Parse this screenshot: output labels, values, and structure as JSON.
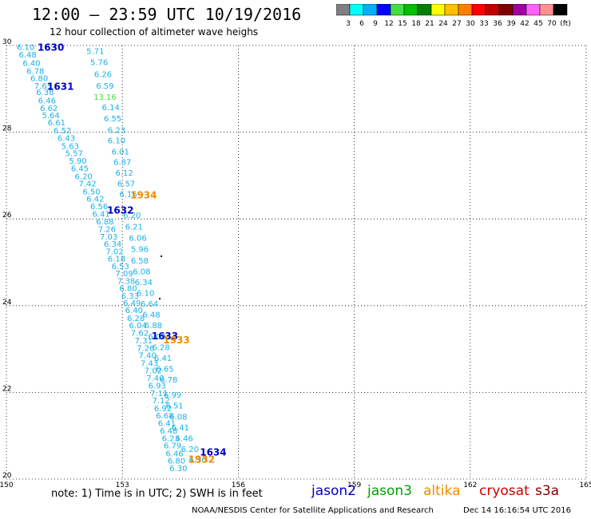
{
  "header": {
    "title": "12:00 – 23:59 UTC 10/19/2016",
    "subtitle": "12 hour collection of altimeter wave heighs"
  },
  "colorbar": {
    "ticks": [
      "3",
      "6",
      "9",
      "12",
      "15",
      "18",
      "21",
      "24",
      "27",
      "30",
      "33",
      "36",
      "39",
      "42",
      "45",
      "70",
      "(ft)"
    ],
    "colors": [
      "#808080",
      "#00ffff",
      "#00b0ff",
      "#0000ff",
      "#40e040",
      "#00c000",
      "#008000",
      "#ffff00",
      "#ffc000",
      "#ff8000",
      "#ff0000",
      "#c00000",
      "#800000",
      "#a000a0",
      "#ff60ff",
      "#ff9090",
      "#000000"
    ]
  },
  "map": {
    "lon_ticks": [
      "150",
      "153",
      "156",
      "159",
      "162",
      "165"
    ],
    "lat_ticks": [
      "30",
      "28",
      "26",
      "24",
      "22",
      "20"
    ],
    "lon_range": [
      150,
      165
    ],
    "lat_range": [
      20,
      30
    ]
  },
  "chart_data": {
    "type": "scatter",
    "colors": {
      "cyan": "#1ab0e8",
      "green": "#40e040",
      "navy": "#0000c8",
      "orange": "#f08c00"
    },
    "points": [
      {
        "t": "6.10",
        "lon": 150.5,
        "lat": 29.97,
        "c": "cyan"
      },
      {
        "t": "6.48",
        "lon": 150.55,
        "lat": 29.8,
        "c": "cyan"
      },
      {
        "t": "6.40",
        "lon": 150.65,
        "lat": 29.6,
        "c": "cyan"
      },
      {
        "t": "6.78",
        "lon": 150.75,
        "lat": 29.42,
        "c": "cyan"
      },
      {
        "t": "6.80",
        "lon": 150.85,
        "lat": 29.25,
        "c": "cyan"
      },
      {
        "t": "7.65",
        "lon": 150.95,
        "lat": 29.08,
        "c": "cyan"
      },
      {
        "t": "6.38",
        "lon": 151.0,
        "lat": 28.93,
        "c": "cyan"
      },
      {
        "t": "6.46",
        "lon": 151.05,
        "lat": 28.74,
        "c": "cyan"
      },
      {
        "t": "6.62",
        "lon": 151.1,
        "lat": 28.56,
        "c": "cyan"
      },
      {
        "t": "5.64",
        "lon": 151.15,
        "lat": 28.4,
        "c": "cyan"
      },
      {
        "t": "6.61",
        "lon": 151.3,
        "lat": 28.23,
        "c": "cyan"
      },
      {
        "t": "6.52",
        "lon": 151.45,
        "lat": 28.05,
        "c": "cyan"
      },
      {
        "t": "6.43",
        "lon": 151.55,
        "lat": 27.87,
        "c": "cyan"
      },
      {
        "t": "5.63",
        "lon": 151.65,
        "lat": 27.69,
        "c": "cyan"
      },
      {
        "t": "5.57",
        "lon": 151.75,
        "lat": 27.52,
        "c": "cyan"
      },
      {
        "t": "5.90",
        "lon": 151.85,
        "lat": 27.35,
        "c": "cyan"
      },
      {
        "t": "6.45",
        "lon": 151.9,
        "lat": 27.17,
        "c": "cyan"
      },
      {
        "t": "6.20",
        "lon": 152.0,
        "lat": 26.99,
        "c": "cyan"
      },
      {
        "t": "7.42",
        "lon": 152.1,
        "lat": 26.82,
        "c": "cyan"
      },
      {
        "t": "6.50",
        "lon": 152.2,
        "lat": 26.64,
        "c": "cyan"
      },
      {
        "t": "6.42",
        "lon": 152.3,
        "lat": 26.47,
        "c": "cyan"
      },
      {
        "t": "6.56",
        "lon": 152.4,
        "lat": 26.3,
        "c": "cyan"
      },
      {
        "t": "6.41",
        "lon": 152.45,
        "lat": 26.12,
        "c": "cyan"
      },
      {
        "t": "6.88",
        "lon": 152.55,
        "lat": 25.95,
        "c": "cyan"
      },
      {
        "t": "7.26",
        "lon": 152.6,
        "lat": 25.77,
        "c": "cyan"
      },
      {
        "t": "7.03",
        "lon": 152.65,
        "lat": 25.6,
        "c": "cyan"
      },
      {
        "t": "6.34",
        "lon": 152.75,
        "lat": 25.43,
        "c": "cyan"
      },
      {
        "t": "7.02",
        "lon": 152.8,
        "lat": 25.26,
        "c": "cyan"
      },
      {
        "t": "6.18",
        "lon": 152.85,
        "lat": 25.09,
        "c": "cyan"
      },
      {
        "t": "6.53",
        "lon": 152.95,
        "lat": 24.92,
        "c": "cyan"
      },
      {
        "t": "7.09",
        "lon": 153.05,
        "lat": 24.75,
        "c": "cyan"
      },
      {
        "t": "7.38",
        "lon": 153.1,
        "lat": 24.58,
        "c": "cyan"
      },
      {
        "t": "6.80",
        "lon": 153.15,
        "lat": 24.41,
        "c": "cyan"
      },
      {
        "t": "6.33",
        "lon": 153.2,
        "lat": 24.24,
        "c": "cyan"
      },
      {
        "t": "6.49",
        "lon": 153.25,
        "lat": 24.07,
        "c": "cyan"
      },
      {
        "t": "6.40",
        "lon": 153.3,
        "lat": 23.9,
        "c": "cyan"
      },
      {
        "t": "6.28",
        "lon": 153.35,
        "lat": 23.72,
        "c": "cyan"
      },
      {
        "t": "6.04",
        "lon": 153.4,
        "lat": 23.55,
        "c": "cyan"
      },
      {
        "t": "7.62",
        "lon": 153.45,
        "lat": 23.38,
        "c": "cyan"
      },
      {
        "t": "7.31",
        "lon": 153.55,
        "lat": 23.2,
        "c": "cyan"
      },
      {
        "t": "7.26",
        "lon": 153.6,
        "lat": 23.03,
        "c": "cyan"
      },
      {
        "t": "7.40",
        "lon": 153.65,
        "lat": 22.86,
        "c": "cyan"
      },
      {
        "t": "7.43",
        "lon": 153.7,
        "lat": 22.68,
        "c": "cyan"
      },
      {
        "t": "7.02",
        "lon": 153.8,
        "lat": 22.51,
        "c": "cyan"
      },
      {
        "t": "7.40",
        "lon": 153.85,
        "lat": 22.34,
        "c": "cyan"
      },
      {
        "t": "6.93",
        "lon": 153.9,
        "lat": 22.16,
        "c": "cyan"
      },
      {
        "t": "7.11",
        "lon": 153.95,
        "lat": 21.99,
        "c": "cyan"
      },
      {
        "t": "7.12",
        "lon": 154.0,
        "lat": 21.82,
        "c": "cyan"
      },
      {
        "t": "6.92",
        "lon": 154.05,
        "lat": 21.64,
        "c": "cyan"
      },
      {
        "t": "6.68",
        "lon": 154.1,
        "lat": 21.47,
        "c": "cyan"
      },
      {
        "t": "6.41",
        "lon": 154.15,
        "lat": 21.3,
        "c": "cyan"
      },
      {
        "t": "6.48",
        "lon": 154.2,
        "lat": 21.12,
        "c": "cyan"
      },
      {
        "t": "6.23",
        "lon": 154.25,
        "lat": 20.95,
        "c": "cyan"
      },
      {
        "t": "6.79",
        "lon": 154.3,
        "lat": 20.78,
        "c": "cyan"
      },
      {
        "t": "6.46",
        "lon": 154.35,
        "lat": 20.6,
        "c": "cyan"
      },
      {
        "t": "6.80",
        "lon": 154.4,
        "lat": 20.43,
        "c": "cyan"
      },
      {
        "t": "6.30",
        "lon": 154.45,
        "lat": 20.26,
        "c": "cyan"
      },
      {
        "t": "5.71",
        "lon": 152.3,
        "lat": 29.88,
        "c": "cyan"
      },
      {
        "t": "5.76",
        "lon": 152.4,
        "lat": 29.62,
        "c": "cyan"
      },
      {
        "t": "6.26",
        "lon": 152.5,
        "lat": 29.35,
        "c": "cyan"
      },
      {
        "t": "6.59",
        "lon": 152.55,
        "lat": 29.08,
        "c": "cyan"
      },
      {
        "t": "13.16",
        "lon": 152.55,
        "lat": 28.82,
        "c": "green"
      },
      {
        "t": "6.14",
        "lon": 152.7,
        "lat": 28.58,
        "c": "cyan"
      },
      {
        "t": "6.55",
        "lon": 152.75,
        "lat": 28.32,
        "c": "cyan"
      },
      {
        "t": "6.23",
        "lon": 152.85,
        "lat": 28.06,
        "c": "cyan"
      },
      {
        "t": "6.10",
        "lon": 152.85,
        "lat": 27.82,
        "c": "cyan"
      },
      {
        "t": "6.01",
        "lon": 152.95,
        "lat": 27.56,
        "c": "cyan"
      },
      {
        "t": "6.87",
        "lon": 153.0,
        "lat": 27.32,
        "c": "cyan"
      },
      {
        "t": "6.12",
        "lon": 153.05,
        "lat": 27.07,
        "c": "cyan"
      },
      {
        "t": "6.57",
        "lon": 153.1,
        "lat": 26.82,
        "c": "cyan"
      },
      {
        "t": "6.16",
        "lon": 153.15,
        "lat": 26.58,
        "c": "cyan"
      },
      {
        "t": "6.20",
        "lon": 153.25,
        "lat": 26.1,
        "c": "cyan"
      },
      {
        "t": "6.21",
        "lon": 153.3,
        "lat": 25.83,
        "c": "cyan"
      },
      {
        "t": "6.06",
        "lon": 153.4,
        "lat": 25.57,
        "c": "cyan"
      },
      {
        "t": "5.96",
        "lon": 153.45,
        "lat": 25.31,
        "c": "cyan"
      },
      {
        "t": "6.58",
        "lon": 153.45,
        "lat": 25.05,
        "c": "cyan"
      },
      {
        "t": "6.08",
        "lon": 153.5,
        "lat": 24.8,
        "c": "cyan"
      },
      {
        "t": "6.34",
        "lon": 153.55,
        "lat": 24.55,
        "c": "cyan"
      },
      {
        "t": "6.10",
        "lon": 153.6,
        "lat": 24.3,
        "c": "cyan"
      },
      {
        "t": "6.64",
        "lon": 153.7,
        "lat": 24.05,
        "c": "cyan"
      },
      {
        "t": "6.48",
        "lon": 153.75,
        "lat": 23.8,
        "c": "cyan"
      },
      {
        "t": "6.88",
        "lon": 153.8,
        "lat": 23.55,
        "c": "cyan"
      },
      {
        "t": "6.09",
        "lon": 153.9,
        "lat": 23.3,
        "c": "cyan"
      },
      {
        "t": "6.28",
        "lon": 154.0,
        "lat": 23.05,
        "c": "cyan"
      },
      {
        "t": "6.41",
        "lon": 154.05,
        "lat": 22.8,
        "c": "cyan"
      },
      {
        "t": "6.65",
        "lon": 154.1,
        "lat": 22.55,
        "c": "cyan"
      },
      {
        "t": "6.78",
        "lon": 154.2,
        "lat": 22.3,
        "c": "cyan"
      },
      {
        "t": "6.99",
        "lon": 154.3,
        "lat": 21.95,
        "c": "cyan"
      },
      {
        "t": "6.51",
        "lon": 154.35,
        "lat": 21.7,
        "c": "cyan"
      },
      {
        "t": "6.08",
        "lon": 154.45,
        "lat": 21.45,
        "c": "cyan"
      },
      {
        "t": "6.41",
        "lon": 154.5,
        "lat": 21.2,
        "c": "cyan"
      },
      {
        "t": "6.46",
        "lon": 154.6,
        "lat": 20.95,
        "c": "cyan"
      },
      {
        "t": "6.20",
        "lon": 154.75,
        "lat": 20.7,
        "c": "cyan"
      },
      {
        "t": "6.30",
        "lon": 154.95,
        "lat": 20.45,
        "c": "cyan"
      },
      {
        "t": "1630",
        "lon": 151.15,
        "lat": 29.95,
        "c": "navy",
        "bold": true
      },
      {
        "t": "1631",
        "lon": 151.4,
        "lat": 29.05,
        "c": "navy",
        "bold": true
      },
      {
        "t": "1632",
        "lon": 152.95,
        "lat": 26.2,
        "c": "navy",
        "bold": true
      },
      {
        "t": "1633",
        "lon": 154.1,
        "lat": 23.3,
        "c": "navy",
        "bold": true
      },
      {
        "t": "1634",
        "lon": 155.35,
        "lat": 20.62,
        "c": "navy",
        "bold": true
      },
      {
        "t": "1934",
        "lon": 153.55,
        "lat": 26.55,
        "c": "orange",
        "bold": true
      },
      {
        "t": "1933",
        "lon": 154.4,
        "lat": 23.2,
        "c": "orange",
        "bold": true
      },
      {
        "t": "1932",
        "lon": 155.05,
        "lat": 20.45,
        "c": "orange",
        "bold": true
      }
    ]
  },
  "footer": {
    "note": "note: 1) Time is in UTC; 2) SWH is in feet",
    "credit": "NOAA/NESDIS Center for Satellite Applications and Research",
    "timestamp": "Dec 14 16:16:54 UTC 2016",
    "satellites": [
      {
        "name": "jason2",
        "color": "#0000c8"
      },
      {
        "name": "jason3",
        "color": "#00a000"
      },
      {
        "name": "altika",
        "color": "#f08c00"
      },
      {
        "name": "cryosat",
        "color": "#d00000"
      },
      {
        "name": "s3a",
        "color": "#800000"
      }
    ]
  }
}
